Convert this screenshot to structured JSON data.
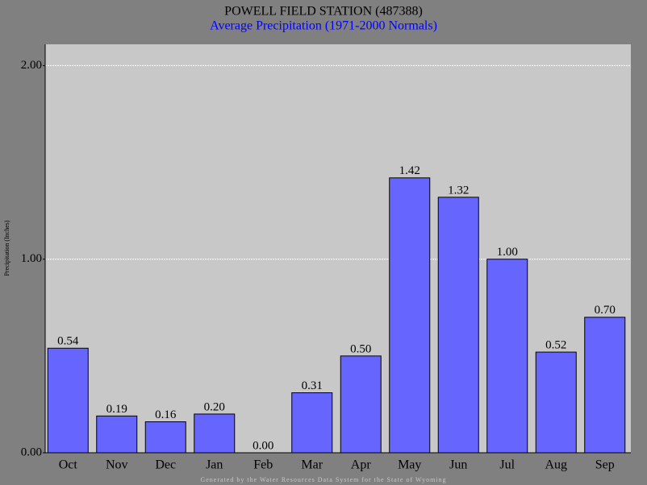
{
  "chart_data": {
    "type": "bar",
    "title": "POWELL FIELD STATION (487388)",
    "subtitle": "Average Precipitation (1971-2000 Normals)",
    "y_label": "Precipitation (Inches)",
    "footer": "Generated by the Water Resources Data System for the State of Wyoming",
    "categories": [
      "Oct",
      "Nov",
      "Dec",
      "Jan",
      "Feb",
      "Mar",
      "Apr",
      "May",
      "Jun",
      "Jul",
      "Aug",
      "Sep"
    ],
    "values": [
      0.54,
      0.19,
      0.16,
      0.2,
      0,
      0.31,
      0.5,
      1.42,
      1.32,
      1,
      0.52,
      0.7
    ],
    "value_labels": [
      "0.54",
      "0.19",
      "0.16",
      "0.20",
      "0.00",
      "0.31",
      "0.50",
      "1.42",
      "1.32",
      "1.00",
      "0.52",
      "0.70"
    ],
    "color": "#6666ff",
    "ylim": [
      0,
      2.11
    ],
    "yticks": [
      {
        "value": 0,
        "label": "0.00"
      },
      {
        "value": 1,
        "label": "1.00"
      },
      {
        "value": 2,
        "label": "2.00"
      }
    ],
    "grid": true
  }
}
